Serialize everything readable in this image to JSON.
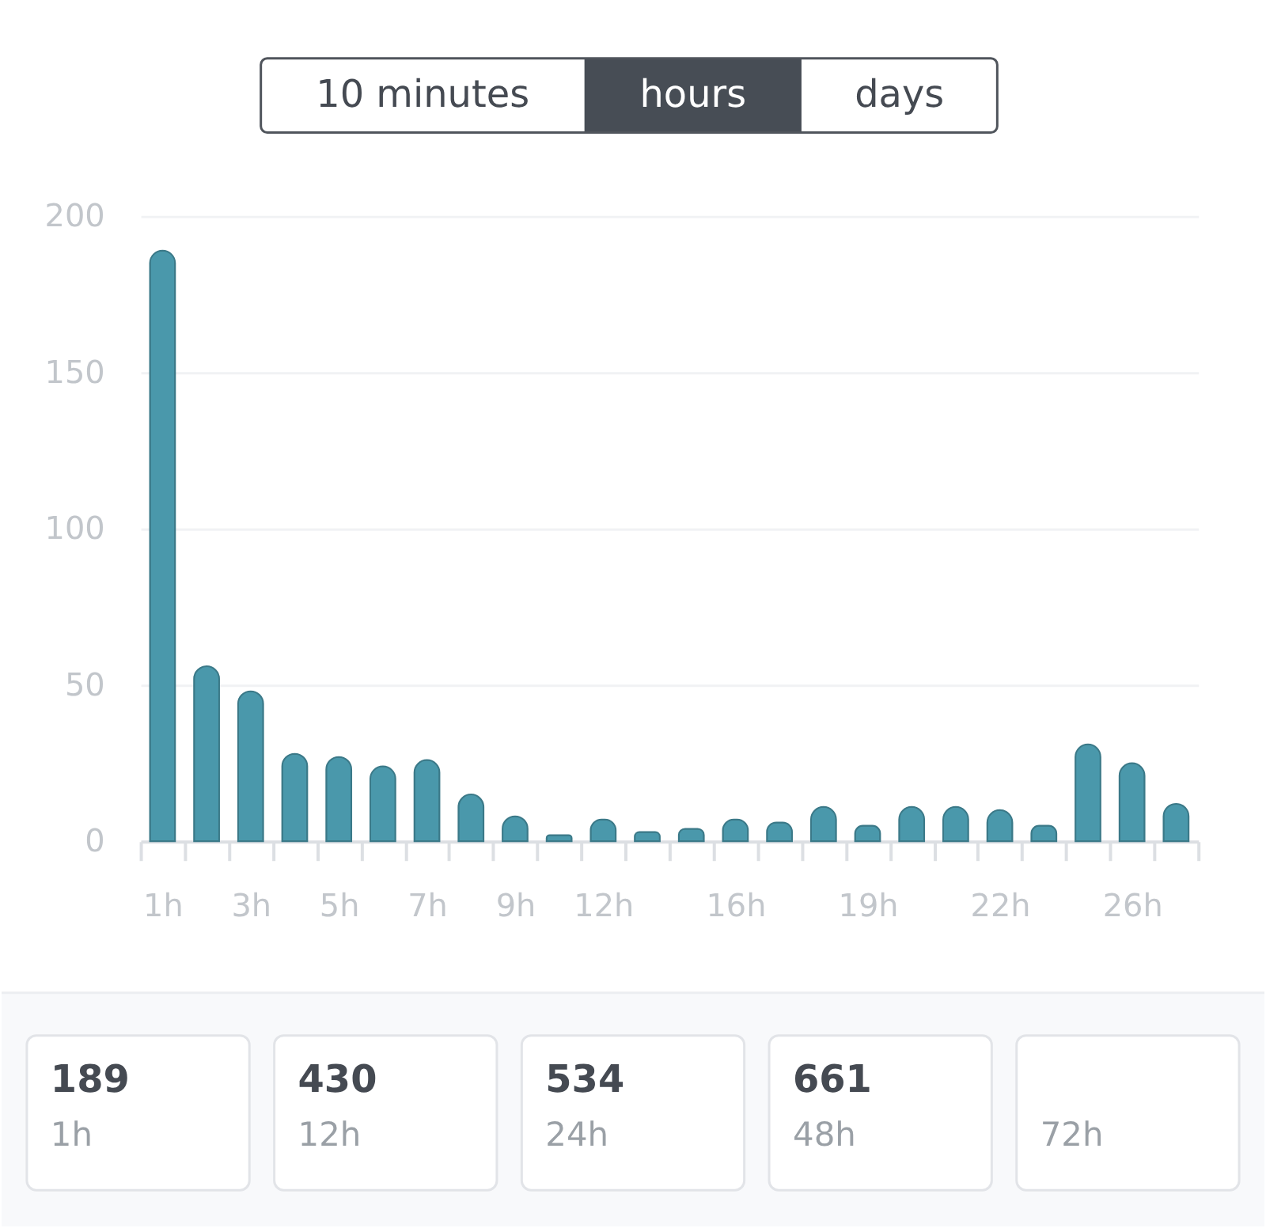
{
  "chart_data": [
    {
      "type": "other",
      "categories": [
        "10 minutes",
        "hours",
        "days"
      ],
      "colors": [
        "#ffffff",
        "#474d55",
        "#ffffff"
      ]
    },
    {
      "type": "bar",
      "categories": [
        "1h",
        null,
        "3h",
        null,
        "5h",
        null,
        "7h",
        null,
        "9h",
        null,
        "12h",
        null,
        null,
        "16h",
        null,
        null,
        "19h",
        null,
        null,
        "22h",
        null,
        null,
        "26h",
        null
      ],
      "values": [
        189,
        56,
        48,
        28,
        27,
        24,
        26,
        15,
        8,
        2,
        7,
        3,
        4,
        7,
        6,
        11,
        5,
        11,
        11,
        10,
        5,
        31,
        25,
        12
      ],
      "color": "#4a98ab",
      "ylim": [
        0,
        200
      ],
      "yticks": [
        0,
        50,
        100,
        150,
        200
      ],
      "grid": "y"
    },
    {
      "type": "other",
      "categories": [
        "1h",
        "12h",
        "24h",
        "48h",
        "72h"
      ],
      "values": [
        189,
        430,
        534,
        661,
        null
      ],
      "data_labels": true
    }
  ]
}
